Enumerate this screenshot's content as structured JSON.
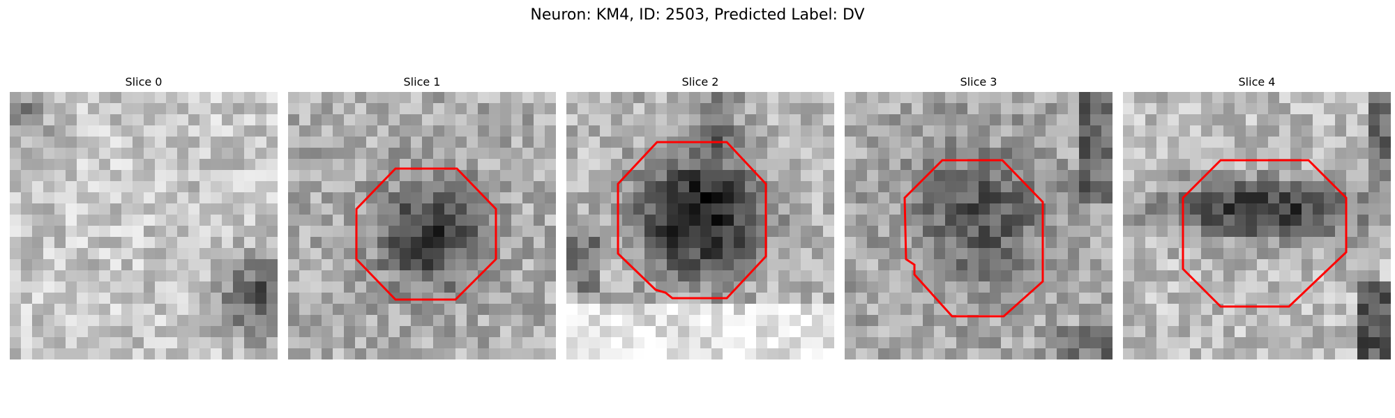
{
  "figure": {
    "title": "Neuron: KM4, ID: 2503, Predicted Label: DV",
    "roi_color": "#ff0000"
  },
  "panels": [
    {
      "title": "Slice 0",
      "has_roi": false,
      "description": "noisy grayscale patch, darker region bottom-right"
    },
    {
      "title": "Slice 1",
      "has_roi": true,
      "description": "dark round soma centered"
    },
    {
      "title": "Slice 2",
      "has_roi": true,
      "description": "large dark soma with bright band below"
    },
    {
      "title": "Slice 3",
      "has_roi": true,
      "description": "medium gray soma, noisy"
    },
    {
      "title": "Slice 4",
      "has_roi": true,
      "description": "dark horizontal band across upper middle"
    }
  ]
}
